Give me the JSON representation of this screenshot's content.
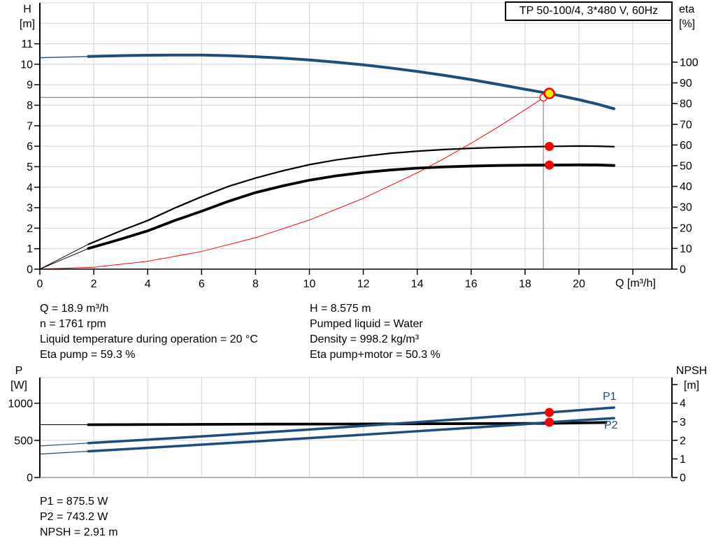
{
  "colors": {
    "curve_blue": "#1c4e7c",
    "curve_black": "#000000",
    "curve_red": "#ff0000",
    "marker_red": "#ff0000",
    "marker_yellow": "#ffe800",
    "grid": "#d4d4d4",
    "crosshair": "#8c8c8c",
    "axis": "#000000",
    "text": "#000000",
    "background": "#ffffff"
  },
  "annotations": {
    "left": [
      "Q = 18.9 m³/h",
      "n = 1761 rpm",
      "Liquid temperature during operation = 20 °C",
      "Eta pump = 59.3 %"
    ],
    "right": [
      "H = 8.575 m",
      "Pumped liquid = Water",
      "Density = 998.2 kg/m³",
      "Eta pump+motor = 50.3 %"
    ],
    "bottom": [
      "P1 = 875.5 W",
      "P2 = 743.2 W",
      "NPSH = 2.91 m"
    ]
  },
  "chart_data": [
    {
      "type": "line",
      "title": "TP 50-100/4, 3*480 V, 60Hz",
      "x_axis": {
        "label": "Q [m³/h]",
        "min": 0,
        "max": 23.45,
        "grid_step": 2,
        "ticks_labeled": [
          0,
          2,
          4,
          6,
          8,
          10,
          12,
          14,
          16,
          18,
          20
        ],
        "ticks_unlabeled": [
          22
        ]
      },
      "y_left": {
        "name": "H",
        "unit": "[m]",
        "min": 0,
        "max": 13,
        "ticks": [
          0,
          1,
          2,
          3,
          4,
          5,
          6,
          7,
          8,
          9,
          10,
          11
        ],
        "grid": [
          1,
          2,
          3,
          4,
          5,
          6,
          7,
          8,
          9,
          10,
          11,
          12,
          13
        ]
      },
      "y_right": {
        "name": "eta",
        "unit": "[%]",
        "min": 0,
        "max": 128.7,
        "ticks": [
          0,
          10,
          20,
          30,
          40,
          50,
          60,
          70,
          80,
          90,
          100
        ],
        "ticks_unlabeled": []
      },
      "series": [
        {
          "name": "system-curve",
          "axis": "left",
          "color": "curve_red",
          "width": 1,
          "points": [
            [
              0,
              0
            ],
            [
              2,
              0.096
            ],
            [
              4,
              0.384
            ],
            [
              6,
              0.864
            ],
            [
              8,
              1.536
            ],
            [
              10,
              2.4
            ],
            [
              12,
              3.456
            ],
            [
              14,
              4.704
            ],
            [
              15,
              5.4
            ],
            [
              16,
              6.144
            ],
            [
              17,
              6.936
            ],
            [
              18,
              7.776
            ],
            [
              18.45,
              8.17
            ],
            [
              18.9,
              8.573
            ]
          ]
        },
        {
          "name": "eta-pump-curve",
          "axis": "right",
          "color": "curve_black",
          "width": 2.2,
          "width_thin": 1,
          "split": 1.8,
          "points": [
            [
              0,
              0
            ],
            [
              0.9,
              6
            ],
            [
              1.8,
              12
            ],
            [
              3,
              18.5
            ],
            [
              4,
              23.5
            ],
            [
              5,
              29.5
            ],
            [
              6,
              35
            ],
            [
              7,
              40
            ],
            [
              8,
              44
            ],
            [
              9,
              47.5
            ],
            [
              10,
              50.5
            ],
            [
              11,
              52.8
            ],
            [
              12,
              54.5
            ],
            [
              13,
              56
            ],
            [
              14,
              57
            ],
            [
              15,
              57.8
            ],
            [
              16,
              58.4
            ],
            [
              17,
              58.8
            ],
            [
              18,
              59.1
            ],
            [
              18.9,
              59.3
            ],
            [
              20,
              59.5
            ],
            [
              20.7,
              59.4
            ],
            [
              21.3,
              59.2
            ]
          ]
        },
        {
          "name": "eta-pump-motor-curve",
          "axis": "right",
          "color": "curve_black",
          "width": 3.8,
          "width_thin": 1,
          "split": 1.8,
          "points": [
            [
              0,
              0
            ],
            [
              0.9,
              5
            ],
            [
              1.8,
              10
            ],
            [
              3,
              14.5
            ],
            [
              4,
              18.5
            ],
            [
              5,
              23.5
            ],
            [
              6,
              28
            ],
            [
              7,
              32.8
            ],
            [
              8,
              37
            ],
            [
              9,
              40.2
            ],
            [
              10,
              43
            ],
            [
              11,
              45.1
            ],
            [
              12,
              46.7
            ],
            [
              13,
              47.9
            ],
            [
              14,
              48.8
            ],
            [
              15,
              49.4
            ],
            [
              16,
              49.8
            ],
            [
              17,
              50.1
            ],
            [
              18,
              50.25
            ],
            [
              18.9,
              50.3
            ],
            [
              20,
              50.4
            ],
            [
              20.7,
              50.35
            ],
            [
              21.3,
              50.1
            ]
          ]
        },
        {
          "name": "head-curve",
          "axis": "left",
          "color": "curve_blue",
          "width": 4,
          "width_thin": 1.3,
          "split": 1.8,
          "points": [
            [
              0,
              10.32
            ],
            [
              0.9,
              10.35
            ],
            [
              1.8,
              10.38
            ],
            [
              3,
              10.42
            ],
            [
              4,
              10.44
            ],
            [
              5,
              10.45
            ],
            [
              6,
              10.45
            ],
            [
              7,
              10.42
            ],
            [
              8,
              10.37
            ],
            [
              9,
              10.3
            ],
            [
              10,
              10.21
            ],
            [
              11,
              10.1
            ],
            [
              12,
              9.97
            ],
            [
              13,
              9.82
            ],
            [
              14,
              9.65
            ],
            [
              15,
              9.46
            ],
            [
              16,
              9.25
            ],
            [
              17,
              9.02
            ],
            [
              18,
              8.78
            ],
            [
              18.9,
              8.575
            ],
            [
              20,
              8.27
            ],
            [
              20.7,
              8.05
            ],
            [
              21.3,
              7.83
            ]
          ]
        }
      ],
      "crosshair": {
        "q": 18.68,
        "v": 8.38,
        "axis": "left"
      },
      "markers": [
        {
          "name": "duty-point-requested",
          "shape": "open-circle",
          "axis": "left",
          "q": 18.68,
          "v": 8.38,
          "r": 5
        },
        {
          "name": "duty-point-actual",
          "shape": "duty",
          "axis": "left",
          "q": 18.9,
          "v": 8.575,
          "r": 7
        },
        {
          "name": "eta-pump-point",
          "shape": "dot",
          "axis": "right",
          "q": 18.9,
          "v": 59.3,
          "r": 6.5
        },
        {
          "name": "eta-pump-motor-point",
          "shape": "dot",
          "axis": "right",
          "q": 18.9,
          "v": 50.3,
          "r": 6.5
        }
      ]
    },
    {
      "type": "line",
      "x_axis": {
        "label": "",
        "min": 0,
        "max": 23.45,
        "grid_step": 2,
        "ticks_labeled": [],
        "ticks_unlabeled": []
      },
      "y_left": {
        "name": "P",
        "unit": "[W]",
        "min": 0,
        "max": 1346,
        "ticks": [
          0,
          500,
          1000
        ],
        "grid": [
          500,
          1000
        ]
      },
      "y_right": {
        "name": "NPSH",
        "unit": "[m]",
        "min": 0,
        "max": 5.38,
        "ticks": [
          0,
          1,
          2,
          3,
          4
        ],
        "ticks_unlabeled": [
          5
        ]
      },
      "top_border": true,
      "series": [
        {
          "name": "npsh-curve",
          "axis": "right",
          "color": "curve_black",
          "width": 3.8,
          "width_thin": 1,
          "split": 1.8,
          "points": [
            [
              0,
              2.84
            ],
            [
              1.8,
              2.84
            ],
            [
              4,
              2.85
            ],
            [
              8,
              2.87
            ],
            [
              12,
              2.88
            ],
            [
              16,
              2.9
            ],
            [
              18.9,
              2.91
            ],
            [
              21,
              2.96
            ]
          ]
        },
        {
          "name": "p2-curve",
          "axis": "left",
          "color": "curve_blue",
          "width": 3.5,
          "width_thin": 1.2,
          "split": 1.8,
          "label": "P2",
          "points": [
            [
              0,
              315
            ],
            [
              0.9,
              334
            ],
            [
              1.8,
              353
            ],
            [
              4,
              399
            ],
            [
              6,
              442
            ],
            [
              8,
              486
            ],
            [
              10,
              531
            ],
            [
              12,
              576
            ],
            [
              14,
              623
            ],
            [
              16,
              670
            ],
            [
              18,
              718
            ],
            [
              18.9,
              743.2
            ],
            [
              20,
              770
            ],
            [
              21.3,
              799
            ]
          ]
        },
        {
          "name": "p1-curve",
          "axis": "left",
          "color": "curve_blue",
          "width": 3.5,
          "width_thin": 1.2,
          "split": 1.8,
          "label": "P1",
          "points": [
            [
              0,
              425
            ],
            [
              0.9,
              444
            ],
            [
              1.8,
              463
            ],
            [
              4,
              510
            ],
            [
              6,
              553
            ],
            [
              8,
              599
            ],
            [
              10,
              646
            ],
            [
              12,
              695
            ],
            [
              14,
              745
            ],
            [
              16,
              797
            ],
            [
              18,
              851
            ],
            [
              18.9,
              875.5
            ],
            [
              20,
              906
            ],
            [
              21.3,
              941
            ]
          ]
        }
      ],
      "markers": [
        {
          "name": "p1-point",
          "shape": "dot",
          "axis": "left",
          "q": 18.9,
          "v": 875.5,
          "r": 6.5
        },
        {
          "name": "p2-point",
          "shape": "dot",
          "axis": "left",
          "q": 18.9,
          "v": 743.2,
          "r": 6.5
        }
      ]
    }
  ]
}
